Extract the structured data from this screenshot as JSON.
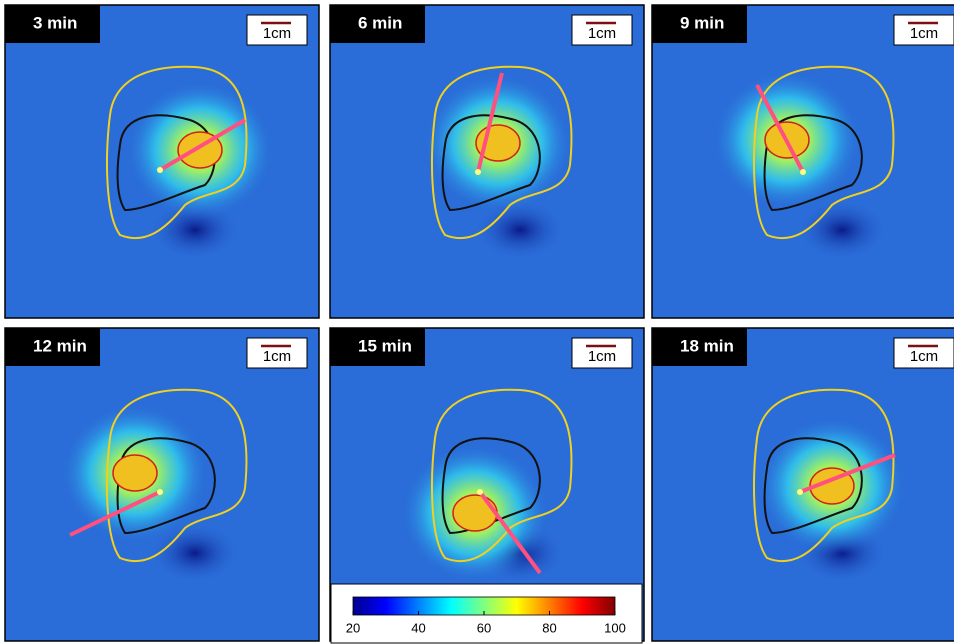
{
  "panels": [
    {
      "label": "3 min",
      "scale": "1cm"
    },
    {
      "label": "6 min",
      "scale": "1cm"
    },
    {
      "label": "9 min",
      "scale": "1cm"
    },
    {
      "label": "12 min",
      "scale": "1cm"
    },
    {
      "label": "15 min",
      "scale": "1cm"
    },
    {
      "label": "18 min",
      "scale": "1cm"
    }
  ],
  "colorbar": {
    "lim": [
      20,
      100
    ],
    "ticks": [
      20,
      40,
      60,
      80,
      100
    ]
  }
}
